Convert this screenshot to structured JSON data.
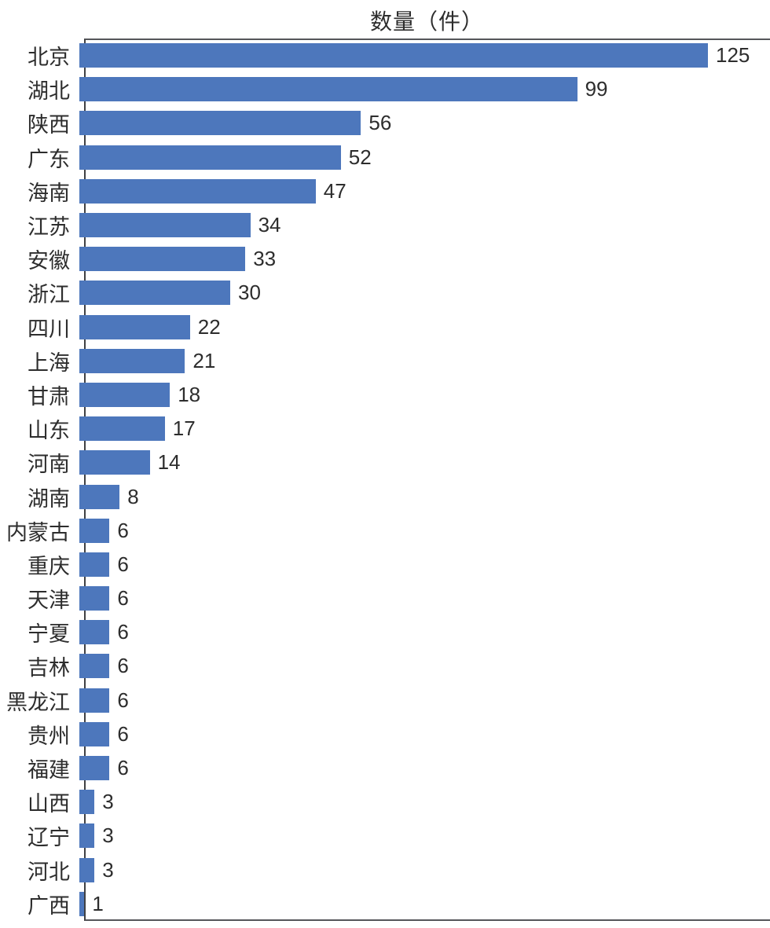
{
  "chart_data": {
    "type": "bar",
    "orientation": "horizontal",
    "title": "数量（件）",
    "categories": [
      "北京",
      "湖北",
      "陕西",
      "广东",
      "海南",
      "江苏",
      "安徽",
      "浙江",
      "四川",
      "上海",
      "甘肃",
      "山东",
      "河南",
      "湖南",
      "内蒙古",
      "重庆",
      "天津",
      "宁夏",
      "吉林",
      "黑龙江",
      "贵州",
      "福建",
      "山西",
      "辽宁",
      "河北",
      "广西"
    ],
    "values": [
      125,
      99,
      56,
      52,
      47,
      34,
      33,
      30,
      22,
      21,
      18,
      17,
      14,
      8,
      6,
      6,
      6,
      6,
      6,
      6,
      6,
      6,
      3,
      3,
      3,
      1
    ],
    "xlim": [
      0,
      136
    ],
    "value_labels_shown": true,
    "grid": "off",
    "legend": "none",
    "bar_color": "#4d77bc",
    "axis_color": "#55565a",
    "text_color": "#2d2d2d"
  }
}
